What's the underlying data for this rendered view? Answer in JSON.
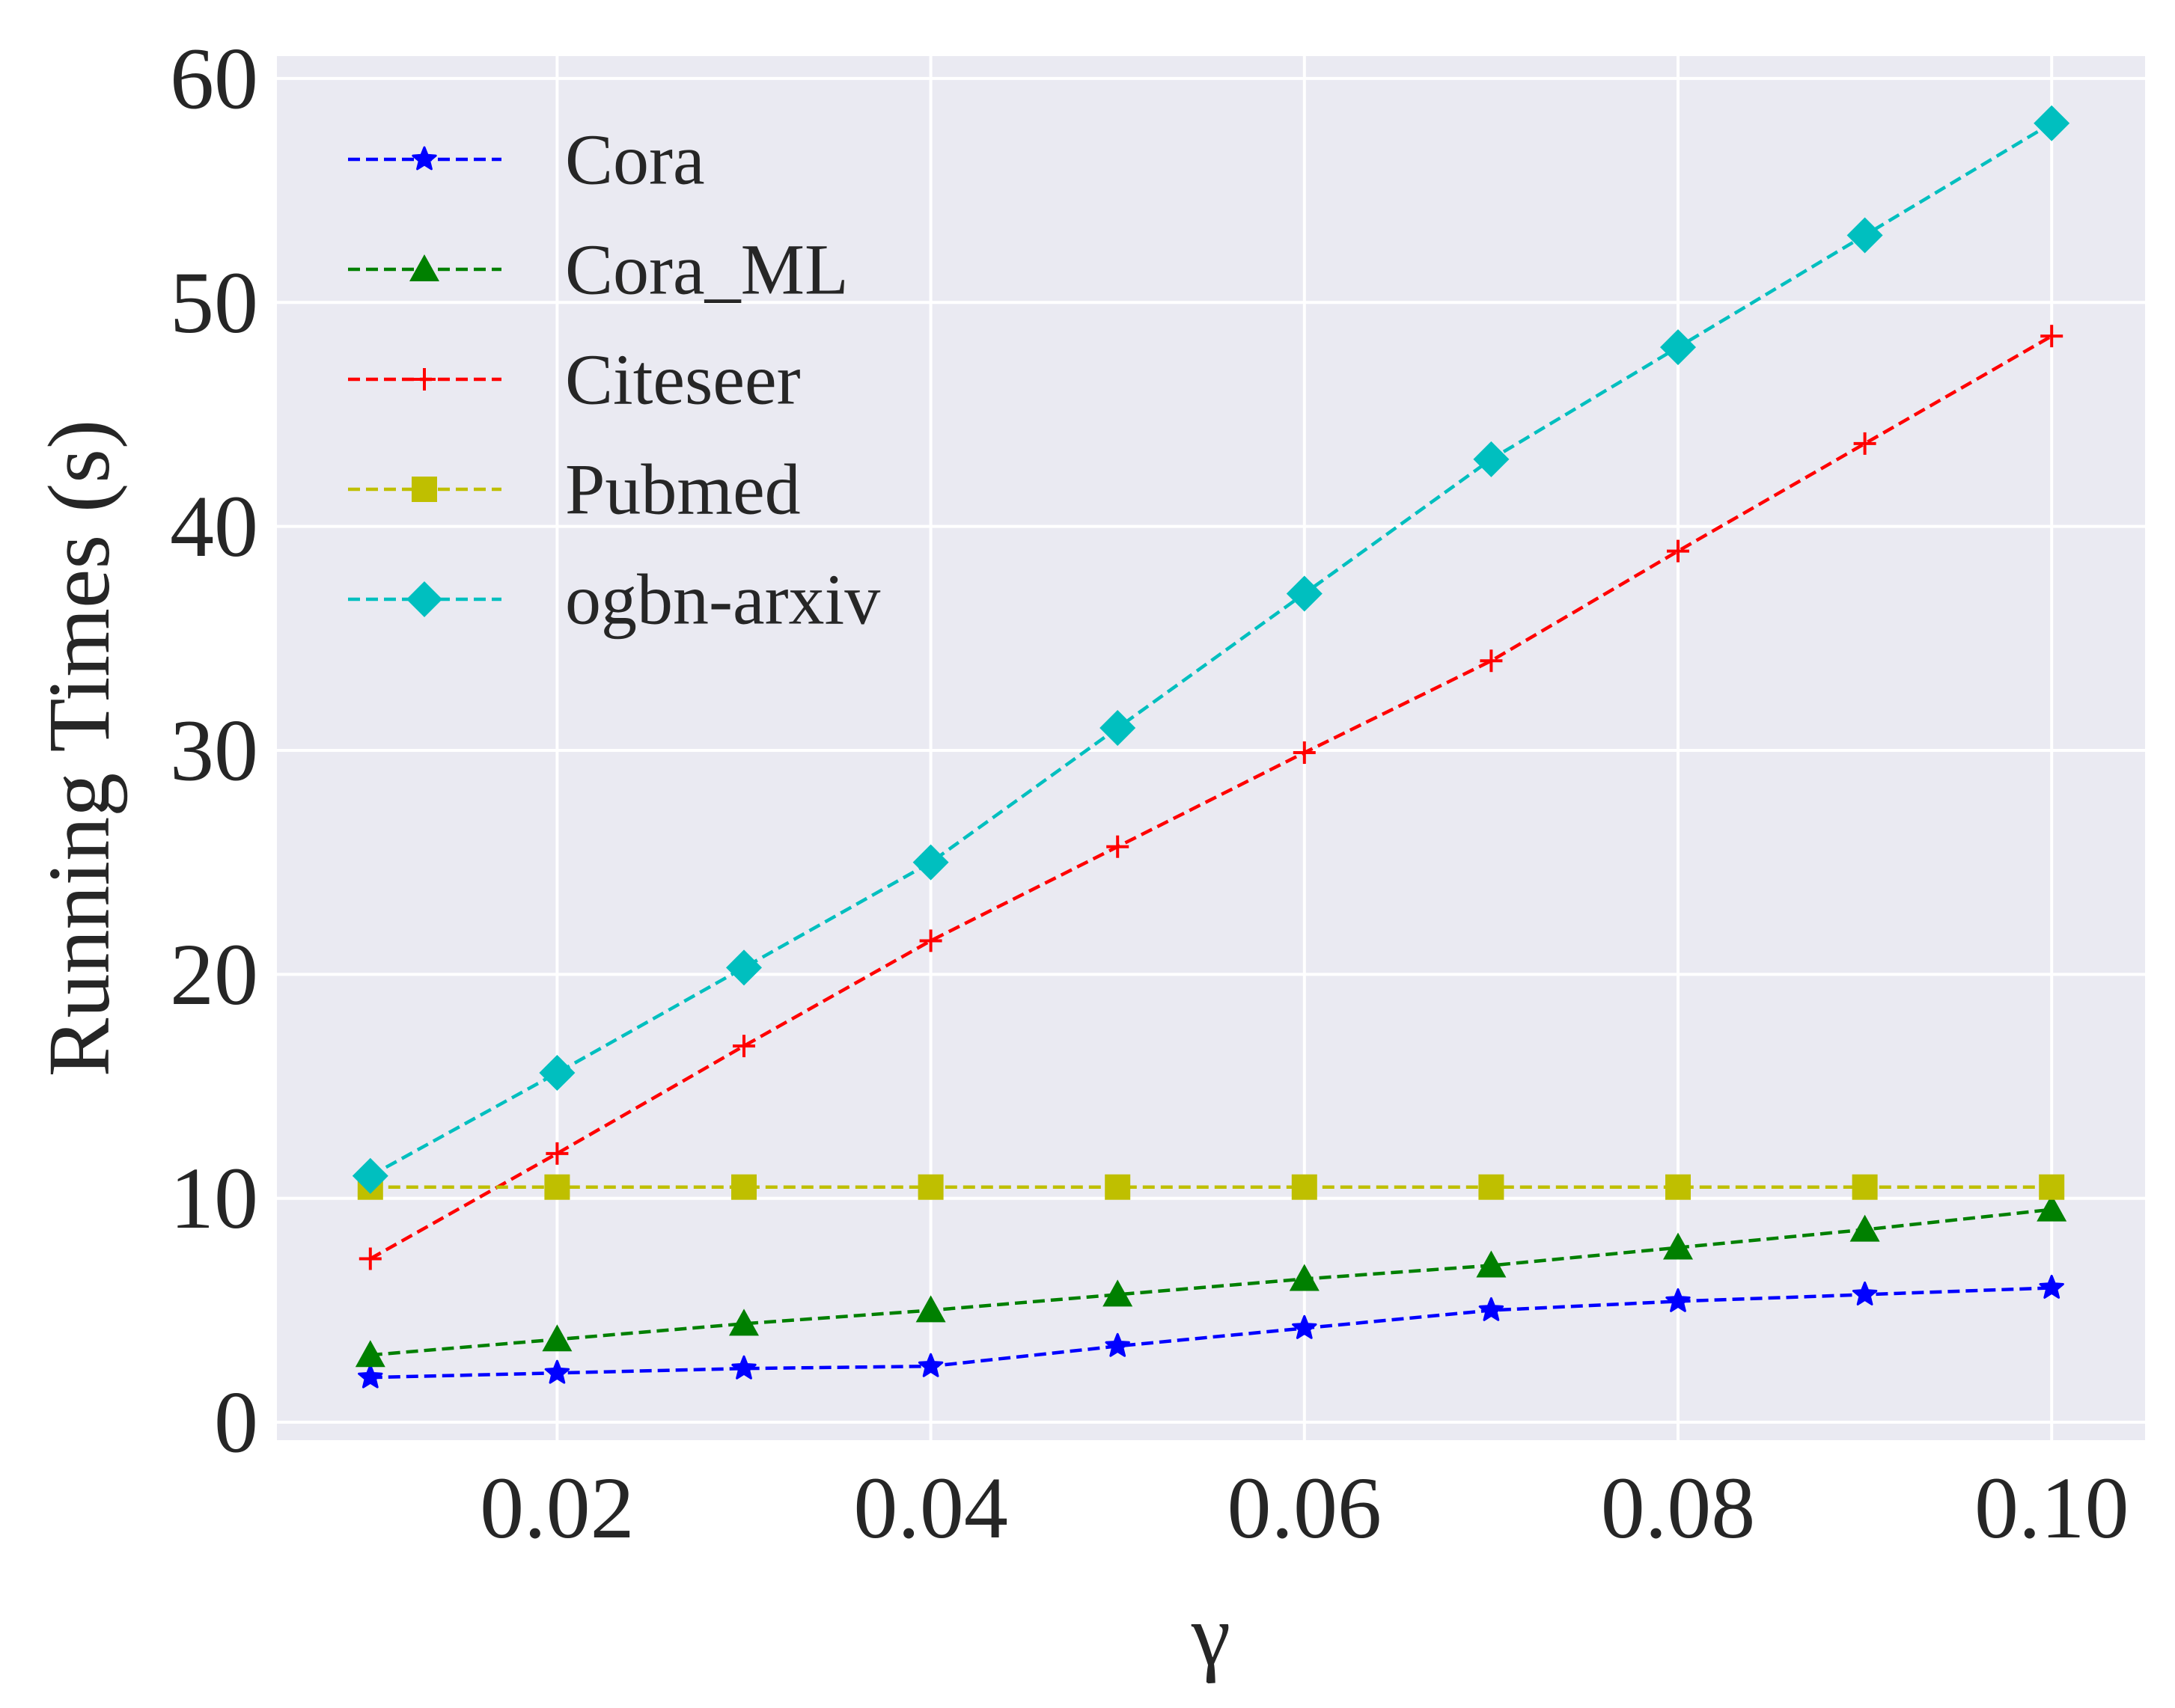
{
  "chart_data": {
    "type": "line",
    "title": "",
    "xlabel": "γ",
    "ylabel": "Running Times (s)",
    "x": [
      0.01,
      0.02,
      0.03,
      0.04,
      0.05,
      0.06,
      0.07,
      0.08,
      0.09,
      0.1
    ],
    "xlim": [
      0.005,
      0.105
    ],
    "ylim": [
      -0.8,
      61
    ],
    "xticks": [
      0.02,
      0.04,
      0.06,
      0.08,
      0.1
    ],
    "xtick_labels": [
      "0.02",
      "0.04",
      "0.06",
      "0.08",
      "0.10"
    ],
    "yticks": [
      0,
      10,
      20,
      30,
      40,
      50,
      60
    ],
    "ytick_labels": [
      "0",
      "10",
      "20",
      "30",
      "40",
      "50",
      "60"
    ],
    "grid": true,
    "legend_position": "top-left",
    "series": [
      {
        "name": "Cora",
        "color": "#0000ff",
        "marker": "star",
        "line": "dashed",
        "values": [
          2.0,
          2.2,
          2.4,
          2.5,
          3.4,
          4.2,
          5.0,
          5.4,
          5.7,
          6.0
        ]
      },
      {
        "name": "Cora_ML",
        "color": "#008000",
        "marker": "triangle",
        "line": "dashed",
        "values": [
          3.0,
          3.7,
          4.4,
          5.0,
          5.7,
          6.4,
          7.0,
          7.8,
          8.6,
          9.5
        ]
      },
      {
        "name": "Citeseer",
        "color": "#ff0000",
        "marker": "plus",
        "line": "dashed",
        "values": [
          7.3,
          12.0,
          16.8,
          21.5,
          25.7,
          29.9,
          34.0,
          38.9,
          43.7,
          48.5
        ]
      },
      {
        "name": "Pubmed",
        "color": "#bfbf00",
        "marker": "square",
        "line": "dashed",
        "values": [
          10.5,
          10.5,
          10.5,
          10.5,
          10.5,
          10.5,
          10.5,
          10.5,
          10.5,
          10.5
        ]
      },
      {
        "name": "ogbn-arxiv",
        "color": "#00bfbf",
        "marker": "diamond",
        "line": "dashed",
        "values": [
          11.0,
          15.6,
          20.3,
          25.0,
          31.0,
          37.0,
          43.0,
          48.0,
          53.0,
          58.0
        ]
      }
    ]
  }
}
